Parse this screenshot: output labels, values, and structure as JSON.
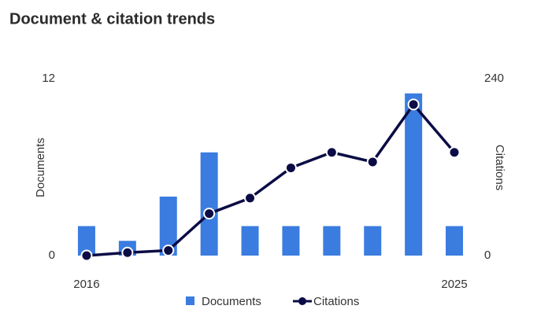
{
  "chart_data": {
    "type": "bar-line",
    "title": "Document & citation trends",
    "categories": [
      "2016",
      null,
      null,
      null,
      null,
      null,
      null,
      null,
      null,
      "2025"
    ],
    "y_label": "Documents",
    "y2_label": "Citations",
    "ylim": [
      0,
      12
    ],
    "yticks": [
      0,
      12
    ],
    "y2lim": [
      0,
      240
    ],
    "y2ticks": [
      0,
      240
    ],
    "series": [
      {
        "name": "Documents",
        "type": "bar",
        "color": "#3a7ce0",
        "values": [
          2,
          1,
          4,
          7,
          2,
          2,
          2,
          2,
          11,
          2
        ]
      },
      {
        "name": "Citations",
        "type": "line",
        "axis": "y2",
        "color": "#0b0c45",
        "values": [
          0,
          4,
          7,
          57,
          78,
          119,
          140,
          127,
          205,
          140
        ]
      }
    ]
  }
}
